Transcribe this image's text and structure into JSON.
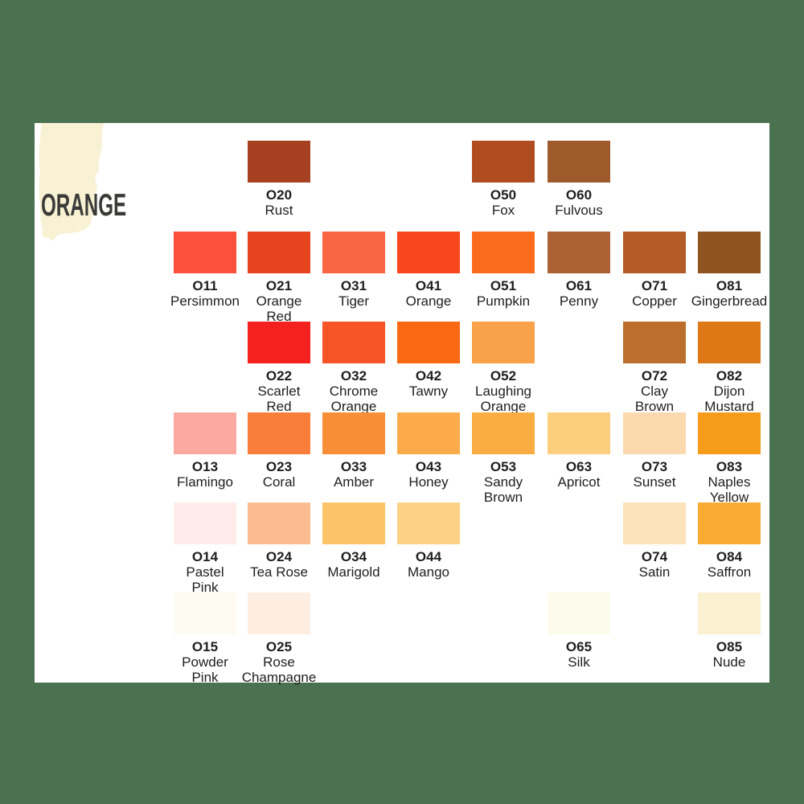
{
  "page": {
    "title": "ORANGE",
    "background_color": "#4a7150",
    "card_color": "#ffffff",
    "brush_stroke_color": "#f8f1d4",
    "title_color": "#3a3a38",
    "text_color": "#1e1e1e"
  },
  "swatches": [
    {
      "code": "O20",
      "name": "Rust",
      "color": "#a54120",
      "row": 1,
      "col": 2
    },
    {
      "code": "O50",
      "name": "Fox",
      "color": "#b04d20",
      "row": 1,
      "col": 5
    },
    {
      "code": "O60",
      "name": "Fulvous",
      "color": "#9e5a2b",
      "row": 1,
      "col": 6
    },
    {
      "code": "O11",
      "name": "Persimmon",
      "color": "#fa503c",
      "row": 2,
      "col": 1
    },
    {
      "code": "O21",
      "name": "Orange\nRed",
      "color": "#e8431f",
      "row": 2,
      "col": 2
    },
    {
      "code": "O31",
      "name": "Tiger",
      "color": "#f96443",
      "row": 2,
      "col": 3
    },
    {
      "code": "O41",
      "name": "Orange",
      "color": "#f8471d",
      "row": 2,
      "col": 4
    },
    {
      "code": "O51",
      "name": "Pumpkin",
      "color": "#fa6c1c",
      "row": 2,
      "col": 5
    },
    {
      "code": "O61",
      "name": "Penny",
      "color": "#ab6335",
      "row": 2,
      "col": 6
    },
    {
      "code": "O71",
      "name": "Copper",
      "color": "#b45c28",
      "row": 2,
      "col": 7
    },
    {
      "code": "O81",
      "name": "Gingerbread",
      "color": "#8f531f",
      "row": 2,
      "col": 8
    },
    {
      "code": "O22",
      "name": "Scarlet\nRed",
      "color": "#f4211f",
      "row": 3,
      "col": 2
    },
    {
      "code": "O32",
      "name": "Chrome\nOrange",
      "color": "#f75527",
      "row": 3,
      "col": 3
    },
    {
      "code": "O42",
      "name": "Tawny",
      "color": "#f96812",
      "row": 3,
      "col": 4
    },
    {
      "code": "O52",
      "name": "Laughing\nOrange",
      "color": "#f9a249",
      "row": 3,
      "col": 5
    },
    {
      "code": "O72",
      "name": "Clay\nBrown",
      "color": "#bc6f2d",
      "row": 3,
      "col": 7
    },
    {
      "code": "O82",
      "name": "Dijon\nMustard",
      "color": "#dd7817",
      "row": 3,
      "col": 8
    },
    {
      "code": "O13",
      "name": "Flamingo",
      "color": "#fba9a1",
      "row": 4,
      "col": 1
    },
    {
      "code": "O23",
      "name": "Coral",
      "color": "#f97d3b",
      "row": 4,
      "col": 2
    },
    {
      "code": "O33",
      "name": "Amber",
      "color": "#f88e38",
      "row": 4,
      "col": 3
    },
    {
      "code": "O43",
      "name": "Honey",
      "color": "#fbaa4c",
      "row": 4,
      "col": 4
    },
    {
      "code": "O53",
      "name": "Sandy\nBrown",
      "color": "#faad42",
      "row": 4,
      "col": 5
    },
    {
      "code": "O63",
      "name": "Apricot",
      "color": "#fccf7e",
      "row": 4,
      "col": 6
    },
    {
      "code": "O73",
      "name": "Sunset",
      "color": "#fbd9ae",
      "row": 4,
      "col": 7
    },
    {
      "code": "O83",
      "name": "Naples\nYellow",
      "color": "#f79b1b",
      "row": 4,
      "col": 8
    },
    {
      "code": "O14",
      "name": "Pastel\nPink",
      "color": "#fdecea",
      "row": 5,
      "col": 1
    },
    {
      "code": "O24",
      "name": "Tea Rose",
      "color": "#fbbc92",
      "row": 5,
      "col": 2
    },
    {
      "code": "O34",
      "name": "Marigold",
      "color": "#fbc468",
      "row": 5,
      "col": 3
    },
    {
      "code": "O44",
      "name": "Mango",
      "color": "#fdd287",
      "row": 5,
      "col": 4
    },
    {
      "code": "O74",
      "name": "Satin",
      "color": "#fce3bb",
      "row": 5,
      "col": 7
    },
    {
      "code": "O84",
      "name": "Saffron",
      "color": "#faab33",
      "row": 5,
      "col": 8
    },
    {
      "code": "O15",
      "name": "Powder\nPink",
      "color": "#fefbf2",
      "row": 6,
      "col": 1
    },
    {
      "code": "O25",
      "name": "Rose\nChampagne",
      "color": "#fdeee1",
      "row": 6,
      "col": 2
    },
    {
      "code": "O65",
      "name": "Silk",
      "color": "#fdfcec",
      "row": 6,
      "col": 6
    },
    {
      "code": "O85",
      "name": "Nude",
      "color": "#fbf0d0",
      "row": 6,
      "col": 8
    }
  ]
}
